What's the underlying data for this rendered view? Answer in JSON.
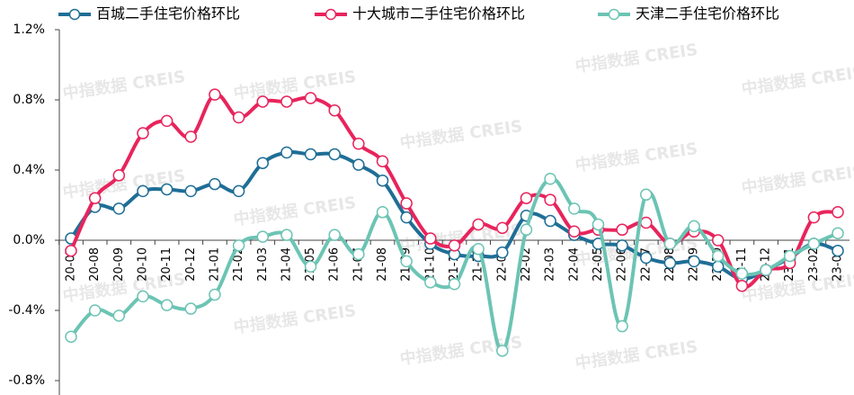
{
  "chart_data": {
    "type": "line",
    "watermark": "中指数据 CREIS",
    "categories": [
      "20-07",
      "20-08",
      "20-09",
      "20-10",
      "20-11",
      "20-12",
      "21-01",
      "21-02",
      "21-03",
      "21-04",
      "21-05",
      "21-06",
      "21-07",
      "21-08",
      "21-09",
      "21-10",
      "21-11",
      "21-12",
      "22-01",
      "22-02",
      "22-03",
      "22-04",
      "22-05",
      "22-06",
      "22-07",
      "22-08",
      "22-09",
      "22-10",
      "22-11",
      "22-12",
      "23-01",
      "23-02",
      "23-03"
    ],
    "series": [
      {
        "name": "百城二手住宅价格环比",
        "color": "#1f6e96",
        "values": [
          0.01,
          0.19,
          0.18,
          0.28,
          0.29,
          0.28,
          0.32,
          0.28,
          0.44,
          0.5,
          0.49,
          0.49,
          0.43,
          0.34,
          0.13,
          -0.02,
          -0.08,
          -0.09,
          -0.07,
          0.14,
          0.11,
          0.03,
          -0.02,
          -0.03,
          -0.1,
          -0.13,
          -0.12,
          -0.15,
          -0.22,
          -0.17,
          -0.1,
          -0.02,
          -0.06
        ]
      },
      {
        "name": "十大城市二手住宅价格环比",
        "color": "#e8245c",
        "values": [
          -0.06,
          0.24,
          0.37,
          0.61,
          0.68,
          0.59,
          0.83,
          0.7,
          0.79,
          0.79,
          0.81,
          0.74,
          0.55,
          0.45,
          0.21,
          0.01,
          -0.03,
          0.09,
          0.07,
          0.24,
          0.23,
          0.05,
          0.06,
          0.06,
          0.1,
          -0.02,
          0.05,
          0.0,
          -0.26,
          -0.17,
          -0.13,
          0.13,
          0.16
        ]
      },
      {
        "name": "天津二手住宅价格环比",
        "color": "#6cc4b4",
        "values": [
          -0.55,
          -0.4,
          -0.43,
          -0.32,
          -0.37,
          -0.39,
          -0.31,
          -0.03,
          0.02,
          0.03,
          -0.15,
          0.03,
          -0.08,
          0.16,
          -0.12,
          -0.24,
          -0.25,
          -0.05,
          -0.63,
          0.06,
          0.35,
          0.18,
          0.09,
          -0.49,
          0.26,
          -0.02,
          0.08,
          -0.09,
          -0.19,
          -0.17,
          -0.09,
          -0.02,
          0.04
        ]
      }
    ],
    "ylim": [
      -0.8,
      1.2
    ],
    "yticks": [
      {
        "value": -0.8,
        "label": "-0.8%"
      },
      {
        "value": -0.4,
        "label": "-0.4%"
      },
      {
        "value": 0,
        "label": "0.0%"
      },
      {
        "value": 0.4,
        "label": "0.4%"
      },
      {
        "value": 0.8,
        "label": "0.8%"
      },
      {
        "value": 1.2,
        "label": "1.2%"
      }
    ],
    "legend": "top",
    "grid": false
  }
}
